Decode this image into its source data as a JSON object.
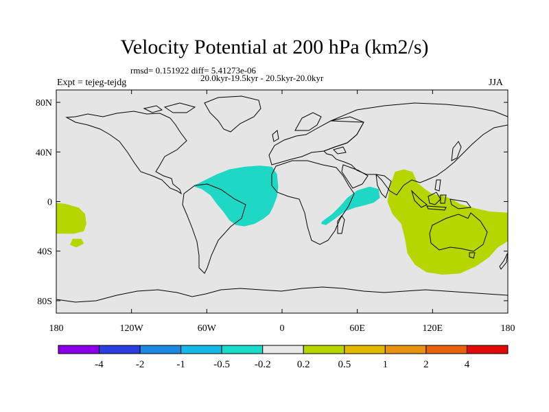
{
  "title": "Velocity Potential at 200 hPa (km2/s)",
  "stats_line": "rmsd= 0.151922 diff= 5.41273e-06",
  "period_line": "20.0kyr-19.5kyr - 20.5kyr-20.0kyr",
  "experiment": "Expt = tejeg-tejdg",
  "season": "JJA",
  "colors": {
    "ocean": "#e5e5e5",
    "coast": "#000000",
    "negative_region": "#1ed8c5",
    "positive_region": "#b7d600"
  },
  "chart_data": {
    "type": "heatmap",
    "title": "Velocity Potential at 200 hPa (km2/s)",
    "projection": "cylindrical equidistant",
    "xlim": [
      -180,
      180
    ],
    "ylim": [
      -90,
      90
    ],
    "x_ticks": [
      {
        "value": -180,
        "label": "180"
      },
      {
        "value": -120,
        "label": "120W"
      },
      {
        "value": -60,
        "label": "60W"
      },
      {
        "value": 0,
        "label": "0"
      },
      {
        "value": 60,
        "label": "60E"
      },
      {
        "value": 120,
        "label": "120E"
      },
      {
        "value": 180,
        "label": "180"
      }
    ],
    "y_ticks": [
      {
        "value": 80,
        "label": "80N"
      },
      {
        "value": 40,
        "label": "40N"
      },
      {
        "value": 0,
        "label": "0"
      },
      {
        "value": -40,
        "label": "40S"
      },
      {
        "value": -80,
        "label": "80S"
      }
    ],
    "colorbar": {
      "colors": [
        "#8a00e6",
        "#2a3ee0",
        "#1c88e2",
        "#15b8e6",
        "#19dcc8",
        "#e8e8e8",
        "#b7d600",
        "#e3b800",
        "#e89212",
        "#e8620e",
        "#e30a0a"
      ],
      "labels": [
        "-4",
        "-2",
        "-1",
        "-0.5",
        "-0.2",
        "0.2",
        "0.5",
        "1",
        "2",
        "4"
      ]
    },
    "regions": [
      {
        "name": "tropical-atlantic-south-america",
        "sign": "negative",
        "bin": "-0.5 to -0.2",
        "points": [
          [
            -68,
            14
          ],
          [
            -60,
            18
          ],
          [
            -52,
            22
          ],
          [
            -42,
            26
          ],
          [
            -30,
            28
          ],
          [
            -18,
            29
          ],
          [
            -8,
            28
          ],
          [
            -4,
            22
          ],
          [
            -3,
            12
          ],
          [
            -4,
            4
          ],
          [
            -7,
            -4
          ],
          [
            -10,
            -10
          ],
          [
            -15,
            -14
          ],
          [
            -22,
            -18
          ],
          [
            -30,
            -20
          ],
          [
            -37,
            -19
          ],
          [
            -42,
            -15
          ],
          [
            -47,
            -8
          ],
          [
            -52,
            -2
          ],
          [
            -57,
            5
          ],
          [
            -64,
            10
          ],
          [
            -70,
            12
          ]
        ]
      },
      {
        "name": "east-africa-indian-ocean",
        "sign": "negative",
        "bin": "-0.5 to -0.2",
        "points": [
          [
            32,
            -16
          ],
          [
            40,
            -10
          ],
          [
            46,
            -4
          ],
          [
            52,
            3
          ],
          [
            60,
            9
          ],
          [
            70,
            12
          ],
          [
            77,
            10
          ],
          [
            78,
            3
          ],
          [
            73,
            -1
          ],
          [
            66,
            -3
          ],
          [
            58,
            -5
          ],
          [
            50,
            -8
          ],
          [
            42,
            -14
          ],
          [
            35,
            -19
          ],
          [
            31,
            -18
          ]
        ]
      },
      {
        "name": "maritime-continent-australia",
        "sign": "positive",
        "bin": "0.2 to 0.5",
        "points": [
          [
            90,
            24
          ],
          [
            97,
            26
          ],
          [
            104,
            24
          ],
          [
            108,
            15
          ],
          [
            114,
            10
          ],
          [
            120,
            6
          ],
          [
            128,
            5
          ],
          [
            135,
            2
          ],
          [
            142,
            -2
          ],
          [
            152,
            -5
          ],
          [
            165,
            -8
          ],
          [
            180,
            -9
          ],
          [
            180,
            -32
          ],
          [
            172,
            -37
          ],
          [
            165,
            -45
          ],
          [
            155,
            -52
          ],
          [
            142,
            -58
          ],
          [
            128,
            -59
          ],
          [
            115,
            -57
          ],
          [
            106,
            -51
          ],
          [
            100,
            -42
          ],
          [
            98,
            -30
          ],
          [
            95,
            -18
          ],
          [
            88,
            -10
          ],
          [
            84,
            0
          ],
          [
            86,
            12
          ]
        ]
      },
      {
        "name": "east-pacific",
        "sign": "positive",
        "bin": "0.2 to 0.5",
        "points": [
          [
            -180,
            -1
          ],
          [
            -172,
            -2
          ],
          [
            -162,
            -5
          ],
          [
            -157,
            -10
          ],
          [
            -156,
            -18
          ],
          [
            -158,
            -24
          ],
          [
            -166,
            -26
          ],
          [
            -180,
            -26
          ]
        ]
      },
      {
        "name": "south-pacific-small",
        "sign": "positive",
        "bin": "0.2 to 0.5",
        "points": [
          [
            -167,
            -30
          ],
          [
            -160,
            -30
          ],
          [
            -158,
            -34
          ],
          [
            -164,
            -37
          ],
          [
            -169,
            -35
          ]
        ]
      }
    ]
  }
}
